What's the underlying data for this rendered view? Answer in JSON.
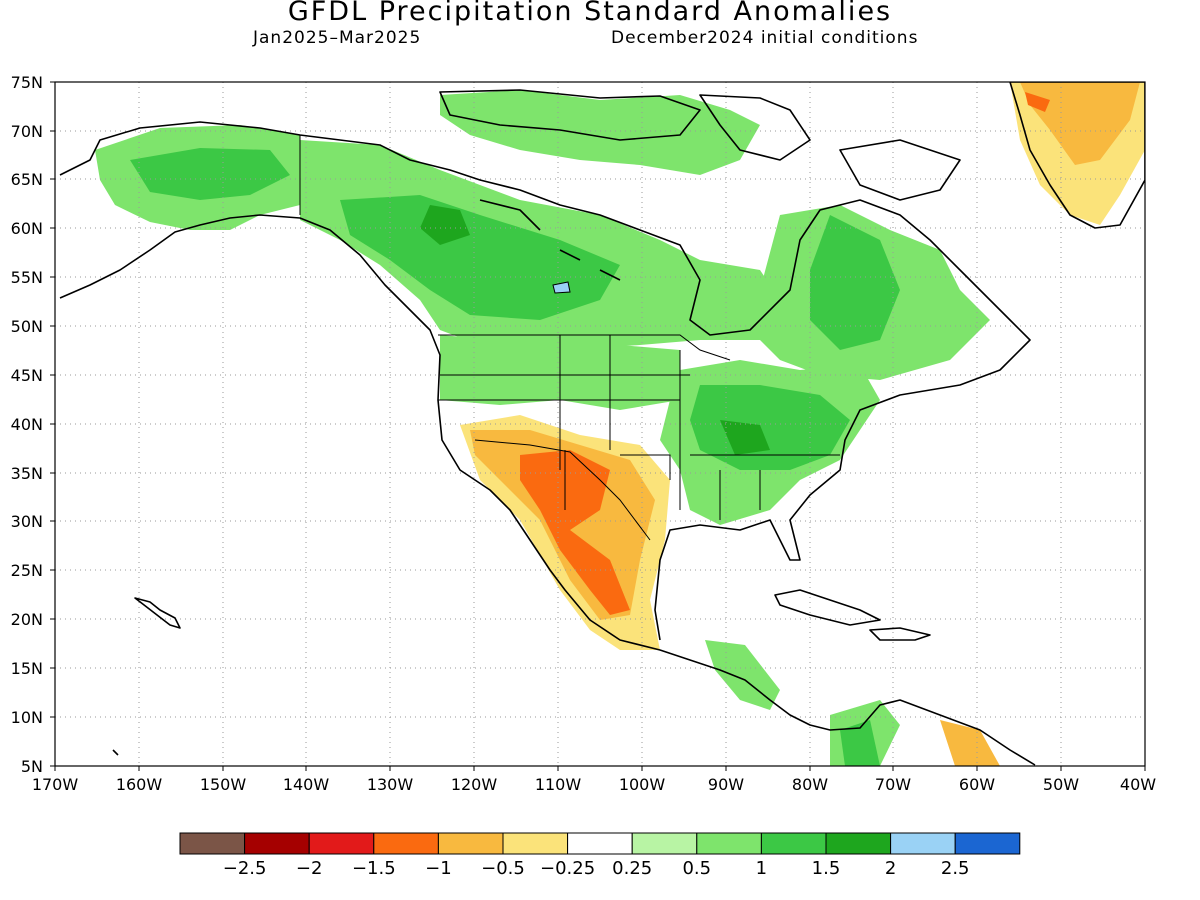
{
  "title": "GFDL Precipitation Standard Anomalies",
  "subtitle_left": "Jan2025–Mar2025",
  "subtitle_right": "December2024 initial conditions",
  "lat_labels": [
    "75N",
    "70N",
    "65N",
    "60N",
    "55N",
    "50N",
    "45N",
    "40N",
    "35N",
    "30N",
    "25N",
    "20N",
    "15N",
    "10N",
    "5N"
  ],
  "lon_labels": [
    "170W",
    "160W",
    "150W",
    "140W",
    "130W",
    "120W",
    "110W",
    "100W",
    "90W",
    "80W",
    "70W",
    "60W",
    "50W",
    "40W"
  ],
  "colorbar": {
    "colors": [
      "#7b5547",
      "#a50000",
      "#e21a1a",
      "#fa6a10",
      "#f8b93f",
      "#fbe37a",
      "#ffffff",
      "#b8f4a4",
      "#7ee46c",
      "#3cc845",
      "#1ea61e",
      "#9ad2f5",
      "#1b66d2"
    ],
    "labels": [
      "−2.5",
      "−2",
      "−1.5",
      "−1",
      "−0.5",
      "−0.25",
      "0.25",
      "0.5",
      "1",
      "1.5",
      "2",
      "2.5"
    ]
  }
}
